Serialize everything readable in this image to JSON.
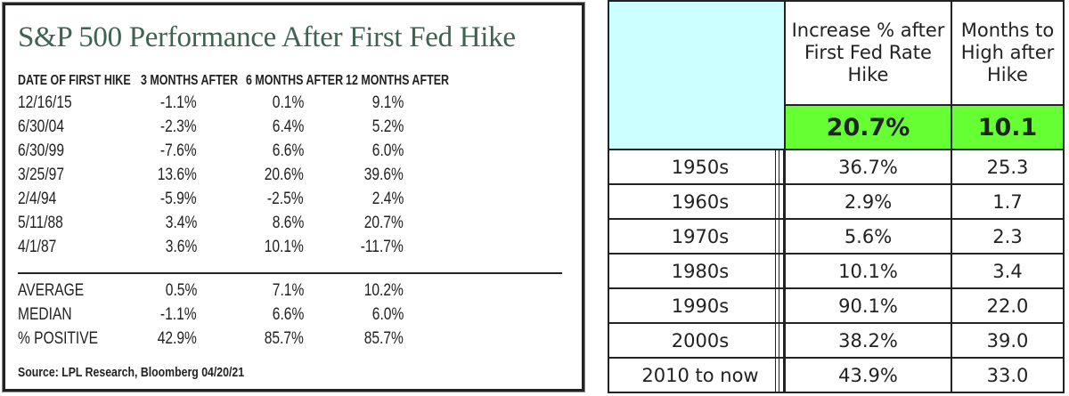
{
  "left_table": {
    "title": "S&P 500 Performance After First Fed Hike",
    "headers": [
      "DATE OF FIRST HIKE",
      "3 MONTHS AFTER",
      "6 MONTHS AFTER",
      "12 MONTHS AFTER"
    ],
    "rows": [
      [
        "12/16/15",
        "-1.1%",
        "0.1%",
        "9.1%"
      ],
      [
        "6/30/04",
        "-2.3%",
        "6.4%",
        "5.2%"
      ],
      [
        "6/30/99",
        "-7.6%",
        "6.6%",
        "6.0%"
      ],
      [
        "3/25/97",
        "13.6%",
        "20.6%",
        "39.6%"
      ],
      [
        "2/4/94",
        "-5.9%",
        "-2.5%",
        "2.4%"
      ],
      [
        "5/11/88",
        "3.4%",
        "8.6%",
        "20.7%"
      ],
      [
        "4/1/87",
        "3.6%",
        "10.1%",
        "-11.7%"
      ]
    ],
    "summary": [
      [
        "AVERAGE",
        "0.5%",
        "7.1%",
        "10.2%"
      ],
      [
        "MEDIAN",
        "-1.1%",
        "6.6%",
        "6.0%"
      ],
      [
        "% POSITIVE",
        "42.9%",
        "85.7%",
        "85.7%"
      ]
    ],
    "source": "Source: LPL Research, Bloomberg 04/20/21",
    "title_color": "#3e6350"
  },
  "right_table": {
    "headers": [
      "Increase % after First Fed Rate Hike",
      "Months to High after Hike"
    ],
    "totals": [
      "20.7%",
      "10.1"
    ],
    "rows": [
      [
        "1950s",
        "36.7%",
        "25.3"
      ],
      [
        "1960s",
        "2.9%",
        "1.7"
      ],
      [
        "1970s",
        "5.6%",
        "2.3"
      ],
      [
        "1980s",
        "10.1%",
        "3.4"
      ],
      [
        "1990s",
        "90.1%",
        "22.0"
      ],
      [
        "2000s",
        "38.2%",
        "39.0"
      ],
      [
        "2010 to now",
        "43.9%",
        "33.0"
      ]
    ],
    "highlight_color": "#66ff33",
    "corner_color": "#ccffff"
  }
}
